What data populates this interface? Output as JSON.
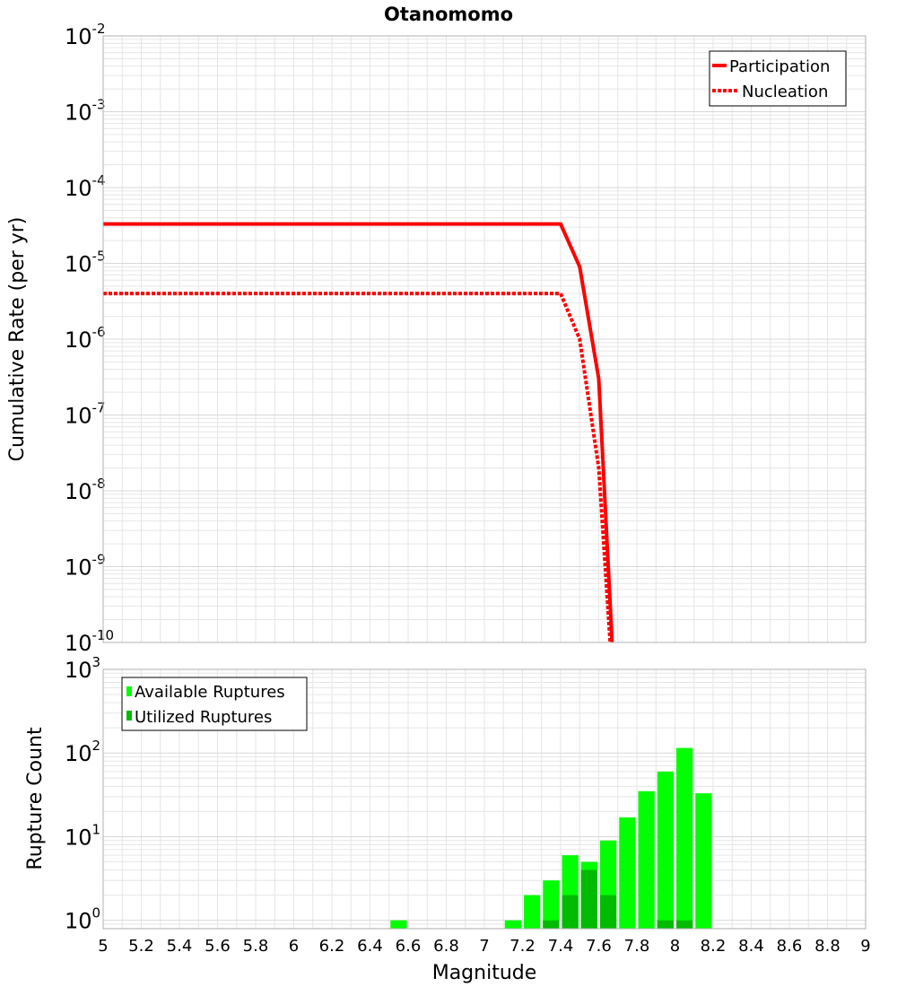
{
  "colors": {
    "participation": "#ff0000",
    "nucleation": "#ff0000",
    "available": "#00ff00",
    "utilized": "#00bb00",
    "grid": "#e6e6e6",
    "axis": "#b0b0b0"
  },
  "chart_data": [
    {
      "type": "line",
      "title": "Otanomomo",
      "xlabel": "",
      "ylabel": "Cumulative Rate (per yr)",
      "xlim": [
        5,
        9
      ],
      "ylim_log10": [
        -10,
        -2
      ],
      "yscale": "log",
      "y_tick_exponents": [
        "-2",
        "-3",
        "-4",
        "-5",
        "-6",
        "-7",
        "-8",
        "-9",
        "-10"
      ],
      "legend_position": "top-right",
      "series": [
        {
          "name": "Participation",
          "style": "solid",
          "x": [
            5.0,
            7.4,
            7.5,
            7.6,
            7.65,
            7.67
          ],
          "y": [
            3.3e-05,
            3.3e-05,
            9e-06,
            3e-07,
            1e-09,
            1e-10
          ]
        },
        {
          "name": "Nucleation",
          "style": "dotted",
          "x": [
            5.0,
            7.4,
            7.5,
            7.6,
            7.66
          ],
          "y": [
            4e-06,
            4e-06,
            1e-06,
            2e-08,
            1e-10
          ]
        }
      ]
    },
    {
      "type": "bar",
      "xlabel": "Magnitude",
      "ylabel": "Rupture Count",
      "xlim": [
        5,
        9
      ],
      "ylim_log10": [
        -0.1,
        3
      ],
      "yscale": "log",
      "y_tick_exponents": [
        "3",
        "2",
        "1",
        "0"
      ],
      "x_tick_labels": [
        "5",
        "5.2",
        "5.4",
        "5.6",
        "5.8",
        "6",
        "6.2",
        "6.4",
        "6.6",
        "6.8",
        "7",
        "7.2",
        "7.4",
        "7.6",
        "7.8",
        "8",
        "8.2",
        "8.4",
        "8.6",
        "8.8",
        "9"
      ],
      "legend_position": "top-left",
      "bin_width": 0.1,
      "series": [
        {
          "name": "Available Ruptures",
          "x": [
            6.55,
            7.15,
            7.25,
            7.35,
            7.45,
            7.55,
            7.65,
            7.75,
            7.85,
            7.95,
            8.05,
            8.15
          ],
          "values": [
            1,
            1,
            2,
            3,
            6,
            5,
            9,
            17,
            35,
            60,
            115,
            33
          ]
        },
        {
          "name": "Utilized Ruptures",
          "x": [
            7.35,
            7.45,
            7.55,
            7.65,
            7.95,
            8.05
          ],
          "values": [
            1,
            2,
            4,
            2,
            1,
            1
          ]
        }
      ]
    }
  ]
}
